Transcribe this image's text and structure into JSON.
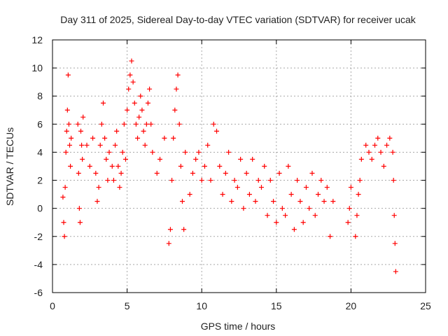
{
  "chart_data": {
    "type": "scatter",
    "title": "Day 311 of 2025, Sidereal Day-to-day VTEC variation (SDTVAR) for receiver ucak",
    "xlabel": "GPS time / hours",
    "ylabel": "SDTVAR / TECUs",
    "xlim": [
      0,
      25
    ],
    "ylim": [
      -6,
      12
    ],
    "xticks": [
      0,
      5,
      10,
      15,
      20,
      25
    ],
    "yticks": [
      -6,
      -4,
      -2,
      0,
      2,
      4,
      6,
      8,
      10,
      12
    ],
    "xtick_labels": [
      "0",
      "5",
      "10",
      "15",
      "20",
      "25"
    ],
    "ytick_labels": [
      "-6",
      "-4",
      "-2",
      "0",
      "2",
      "4",
      "6",
      "8",
      "10",
      "12"
    ],
    "grid": true,
    "marker": "+",
    "color": "#ff0000",
    "series": [
      {
        "name": "SDTVAR",
        "x": [
          0.7,
          0.75,
          0.8,
          0.85,
          0.9,
          0.95,
          1.0,
          1.05,
          1.1,
          1.15,
          1.2,
          1.25,
          1.7,
          1.75,
          1.8,
          1.85,
          1.9,
          1.95,
          2.0,
          2.05,
          2.3,
          2.5,
          2.7,
          2.9,
          3.0,
          3.1,
          3.2,
          3.3,
          3.4,
          3.5,
          3.6,
          3.7,
          3.8,
          4.0,
          4.1,
          4.2,
          4.3,
          4.4,
          4.5,
          4.6,
          4.7,
          4.8,
          4.9,
          5.0,
          5.1,
          5.2,
          5.3,
          5.4,
          5.5,
          5.6,
          5.7,
          5.8,
          5.9,
          6.0,
          6.1,
          6.2,
          6.3,
          6.4,
          6.5,
          6.6,
          6.7,
          7.0,
          7.2,
          7.5,
          7.8,
          7.9,
          8.0,
          8.1,
          8.2,
          8.3,
          8.4,
          8.5,
          8.6,
          8.7,
          8.8,
          8.9,
          9.2,
          9.4,
          9.6,
          9.8,
          10.0,
          10.2,
          10.4,
          10.6,
          10.8,
          11.0,
          11.2,
          11.4,
          11.6,
          11.8,
          12.0,
          12.2,
          12.4,
          12.6,
          12.8,
          13.0,
          13.2,
          13.4,
          13.6,
          13.8,
          14.0,
          14.2,
          14.4,
          14.6,
          14.8,
          15.0,
          15.2,
          15.4,
          15.6,
          15.8,
          16.0,
          16.2,
          16.4,
          16.6,
          16.8,
          17.0,
          17.2,
          17.4,
          17.6,
          17.8,
          18.0,
          18.2,
          18.4,
          18.6,
          18.8,
          19.8,
          19.9,
          20.0,
          20.3,
          20.4,
          20.5,
          20.6,
          20.7,
          21.0,
          21.2,
          21.4,
          21.6,
          21.8,
          22.0,
          22.2,
          22.4,
          22.6,
          22.8,
          22.85,
          22.9,
          22.95,
          23.0
        ],
        "y": [
          0.8,
          -1.0,
          -2.0,
          1.5,
          4.0,
          5.5,
          7.0,
          9.5,
          6.0,
          4.5,
          3.0,
          5.0,
          6.0,
          2.5,
          0.0,
          -1.0,
          5.5,
          4.5,
          3.5,
          6.5,
          4.5,
          3.0,
          5.0,
          2.5,
          0.5,
          1.5,
          4.5,
          6.0,
          7.5,
          5.0,
          3.5,
          2.0,
          4.0,
          3.0,
          2.0,
          4.5,
          5.5,
          3.0,
          1.5,
          2.5,
          4.0,
          6.0,
          3.5,
          7.0,
          8.5,
          9.5,
          10.5,
          9.0,
          7.5,
          6.0,
          5.0,
          6.5,
          8.0,
          7.0,
          5.5,
          4.5,
          6.0,
          7.5,
          8.5,
          6.0,
          4.0,
          2.5,
          3.5,
          5.0,
          -2.5,
          -1.5,
          2.0,
          5.0,
          7.0,
          8.5,
          9.5,
          6.0,
          3.0,
          0.5,
          -1.5,
          4.0,
          1.0,
          2.5,
          3.5,
          4.0,
          2.0,
          3.0,
          4.5,
          2.0,
          6.0,
          5.5,
          3.0,
          1.0,
          2.5,
          4.0,
          0.5,
          2.0,
          1.5,
          3.5,
          0.0,
          2.5,
          1.0,
          3.5,
          0.5,
          2.0,
          1.5,
          3.0,
          -0.5,
          2.0,
          0.5,
          -1.0,
          2.5,
          0.0,
          -0.5,
          3.0,
          1.0,
          -1.5,
          2.0,
          0.5,
          -1.0,
          1.5,
          0.0,
          2.5,
          -0.5,
          1.0,
          2.0,
          0.5,
          1.5,
          -2.0,
          0.5,
          -1.0,
          0.0,
          1.5,
          -2.0,
          -0.5,
          1.0,
          2.0,
          3.5,
          4.5,
          4.0,
          3.5,
          4.5,
          5.0,
          4.0,
          3.0,
          4.5,
          5.0,
          4.0,
          2.0,
          -0.5,
          -2.5,
          -4.5
        ]
      }
    ]
  }
}
